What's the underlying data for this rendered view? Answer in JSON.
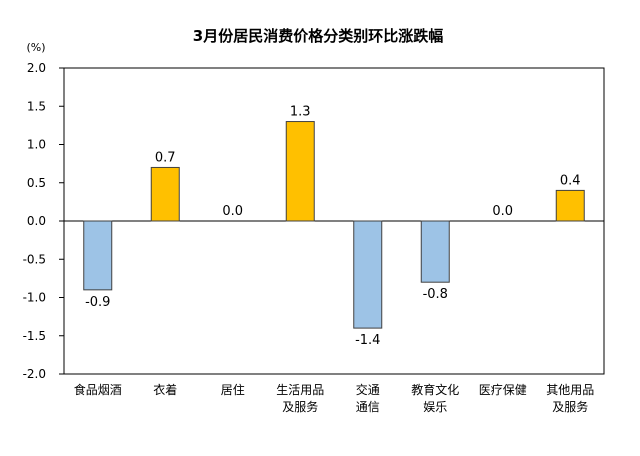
{
  "chart_data": {
    "type": "bar",
    "title": "3月份居民消费价格分类别环比涨跌幅",
    "unit_label": "(%)",
    "categories": [
      [
        "食品烟酒"
      ],
      [
        "衣着"
      ],
      [
        "居住"
      ],
      [
        "生活用品",
        "及服务"
      ],
      [
        "交通",
        "通信"
      ],
      [
        "教育文化",
        "娱乐"
      ],
      [
        "医疗保健"
      ],
      [
        "其他用品",
        "及服务"
      ]
    ],
    "values": [
      -0.9,
      0.7,
      0.0,
      1.3,
      -1.4,
      -0.8,
      0.0,
      0.4
    ],
    "value_labels": [
      "-0.9",
      "0.7",
      "0.0",
      "1.3",
      "-1.4",
      "-0.8",
      "0.0",
      "0.4"
    ],
    "yticks": [
      "2.0",
      "1.5",
      "1.0",
      "0.5",
      "0.0",
      "-0.5",
      "-1.0",
      "-1.5",
      "-2.0"
    ],
    "ylim": [
      -2.0,
      2.0
    ],
    "colors": {
      "positive_fill": "#FFC000",
      "negative_fill": "#9DC3E6",
      "bar_stroke": "#404040",
      "axis": "#000000"
    }
  }
}
